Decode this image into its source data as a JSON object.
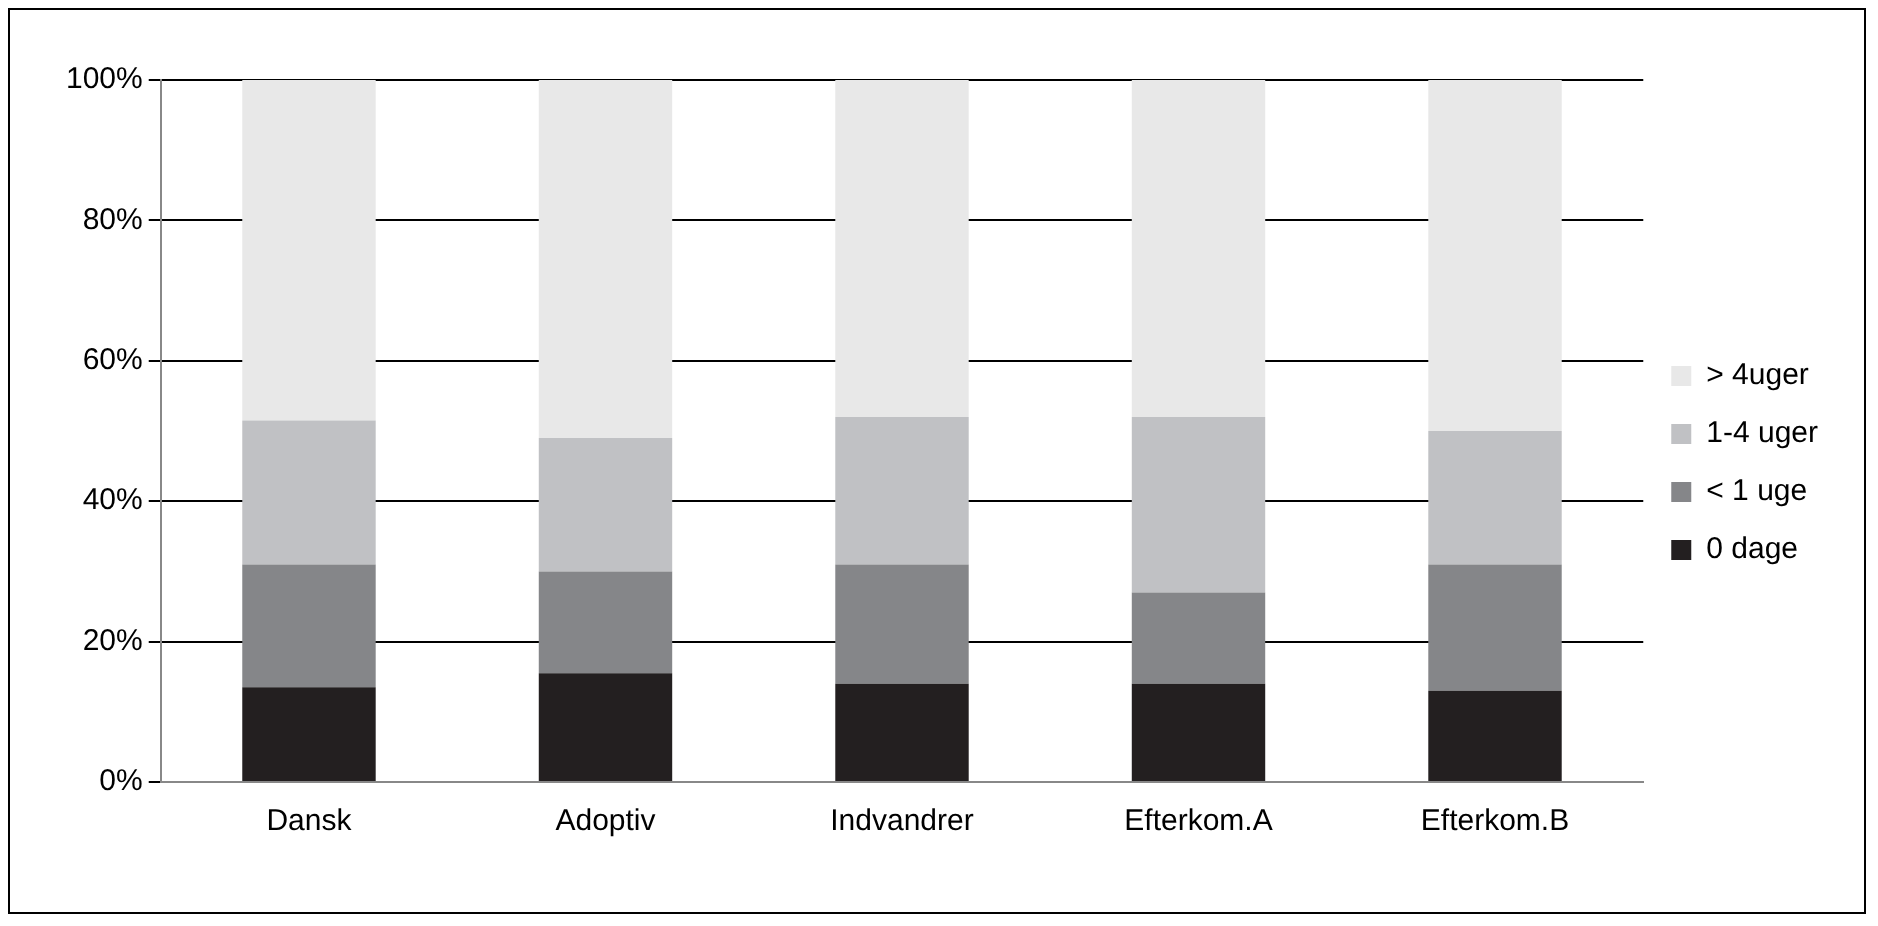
{
  "chart_data": {
    "type": "bar",
    "stacked": true,
    "categories": [
      "Dansk",
      "Adoptiv",
      "Indvandrer",
      "Efterkom.A",
      "Efterkom.B"
    ],
    "series": [
      {
        "name": "0 dage",
        "color": "#231f20",
        "values": [
          13.5,
          15.5,
          14,
          14,
          13
        ]
      },
      {
        "name": "< 1 uge",
        "color": "#858689",
        "values": [
          17.5,
          14.5,
          17,
          13,
          18
        ]
      },
      {
        "name": "1-4 uger",
        "color": "#c0c1c4",
        "values": [
          20.5,
          19,
          21,
          25,
          19
        ]
      },
      {
        "name": "> 4uger",
        "color": "#e8e8e8",
        "values": [
          48.5,
          51,
          48,
          48,
          50
        ]
      }
    ],
    "ylim": [
      0,
      100
    ],
    "yticks": [
      {
        "value": 0,
        "label": "0%"
      },
      {
        "value": 20,
        "label": "20%"
      },
      {
        "value": 40,
        "label": "40%"
      },
      {
        "value": 60,
        "label": "60%"
      },
      {
        "value": 80,
        "label": "80%"
      },
      {
        "value": 100,
        "label": "100%"
      }
    ],
    "grid": "y",
    "legend": "right"
  }
}
